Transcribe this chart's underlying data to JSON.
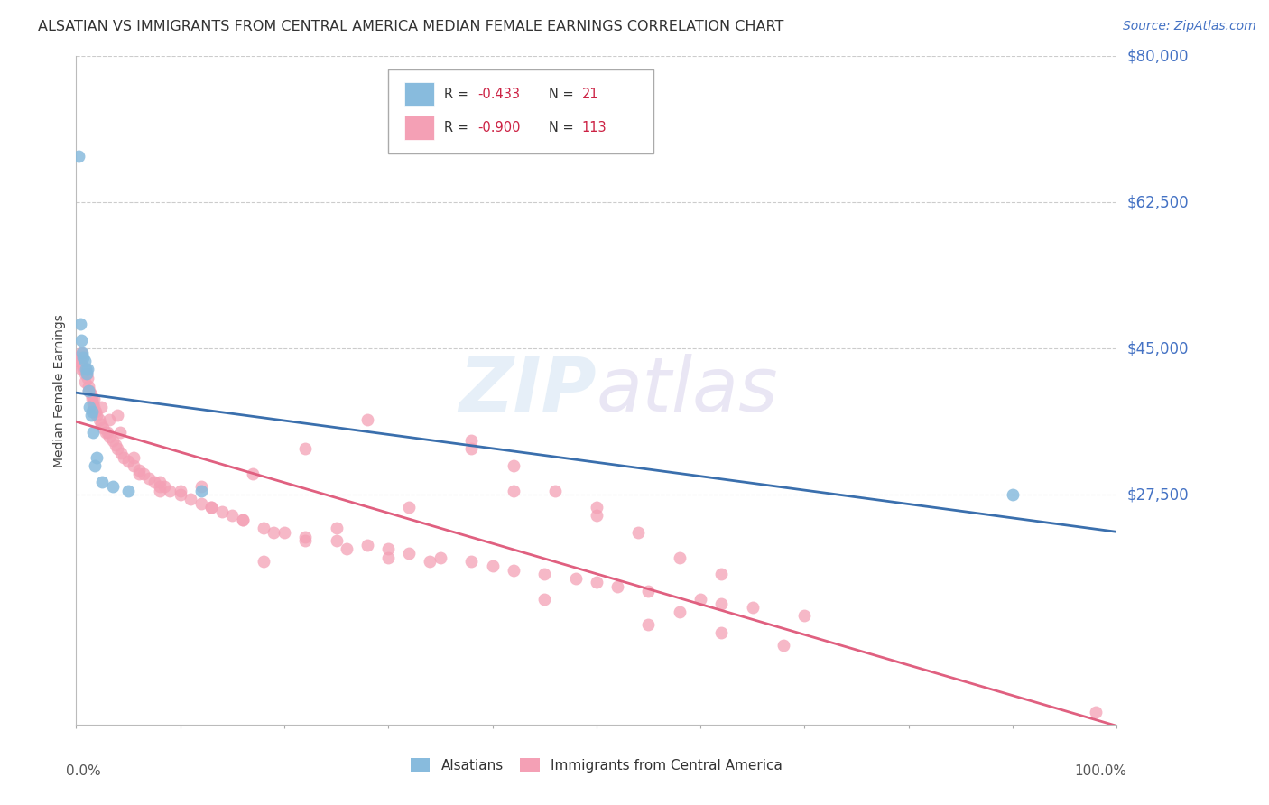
{
  "title": "ALSATIAN VS IMMIGRANTS FROM CENTRAL AMERICA MEDIAN FEMALE EARNINGS CORRELATION CHART",
  "source": "Source: ZipAtlas.com",
  "ylabel": "Median Female Earnings",
  "y_ticks": [
    0,
    27500,
    45000,
    62500,
    80000
  ],
  "y_tick_labels": [
    "",
    "$27,500",
    "$45,000",
    "$62,500",
    "$80,000"
  ],
  "y_label_color": "#4472c4",
  "xlim": [
    0,
    1.0
  ],
  "ylim": [
    0,
    80000
  ],
  "background_color": "#ffffff",
  "series1_color": "#88bbdd",
  "series2_color": "#f4a0b5",
  "trendline1_color": "#3a6fad",
  "trendline2_color": "#e06080",
  "trendline_dashed_color": "#a0c8e8",
  "alsatians_x": [
    0.002,
    0.004,
    0.005,
    0.006,
    0.007,
    0.008,
    0.009,
    0.01,
    0.011,
    0.012,
    0.013,
    0.014,
    0.015,
    0.016,
    0.018,
    0.02,
    0.025,
    0.035,
    0.05,
    0.12,
    0.9
  ],
  "alsatians_y": [
    68000,
    48000,
    46000,
    44500,
    44000,
    43500,
    42500,
    42000,
    42500,
    40000,
    38000,
    37000,
    37500,
    35000,
    31000,
    32000,
    29000,
    28500,
    28000,
    28000,
    27500
  ],
  "central_america_x": [
    0.002,
    0.003,
    0.004,
    0.005,
    0.006,
    0.007,
    0.008,
    0.009,
    0.01,
    0.011,
    0.012,
    0.013,
    0.014,
    0.015,
    0.016,
    0.017,
    0.018,
    0.019,
    0.02,
    0.022,
    0.024,
    0.026,
    0.028,
    0.03,
    0.032,
    0.035,
    0.038,
    0.04,
    0.043,
    0.046,
    0.05,
    0.055,
    0.06,
    0.065,
    0.07,
    0.075,
    0.08,
    0.085,
    0.09,
    0.1,
    0.11,
    0.12,
    0.13,
    0.14,
    0.15,
    0.16,
    0.18,
    0.2,
    0.22,
    0.25,
    0.28,
    0.3,
    0.32,
    0.35,
    0.38,
    0.4,
    0.42,
    0.45,
    0.48,
    0.5,
    0.52,
    0.55,
    0.6,
    0.62,
    0.65,
    0.7,
    0.98,
    0.04,
    0.06,
    0.08,
    0.1,
    0.13,
    0.16,
    0.19,
    0.22,
    0.26,
    0.3,
    0.34,
    0.38,
    0.42,
    0.46,
    0.5,
    0.54,
    0.58,
    0.62,
    0.5,
    0.38,
    0.28,
    0.22,
    0.17,
    0.12,
    0.08,
    0.055,
    0.042,
    0.032,
    0.024,
    0.017,
    0.012,
    0.008,
    0.005,
    0.003,
    0.45,
    0.55,
    0.42,
    0.32,
    0.25,
    0.18,
    0.62,
    0.68,
    0.58
  ],
  "central_america_y": [
    44000,
    43500,
    44000,
    44500,
    43000,
    42500,
    42000,
    42500,
    42000,
    41500,
    40500,
    40000,
    39500,
    39000,
    38500,
    38000,
    37500,
    37500,
    37000,
    36500,
    36000,
    35500,
    35000,
    35000,
    34500,
    34000,
    33500,
    33000,
    32500,
    32000,
    31500,
    31000,
    30500,
    30000,
    29500,
    29000,
    29000,
    28500,
    28000,
    27500,
    27000,
    26500,
    26000,
    25500,
    25000,
    24500,
    23500,
    23000,
    22500,
    22000,
    21500,
    21000,
    20500,
    20000,
    19500,
    19000,
    18500,
    18000,
    17500,
    17000,
    16500,
    16000,
    15000,
    14500,
    14000,
    13000,
    1500,
    37000,
    30000,
    28500,
    28000,
    26000,
    24500,
    23000,
    22000,
    21000,
    20000,
    19500,
    34000,
    31000,
    28000,
    25000,
    23000,
    20000,
    18000,
    26000,
    33000,
    36500,
    33000,
    30000,
    28500,
    28000,
    32000,
    35000,
    36500,
    38000,
    39000,
    40000,
    41000,
    42500,
    43500,
    15000,
    12000,
    28000,
    26000,
    23500,
    19500,
    11000,
    9500,
    13500
  ]
}
